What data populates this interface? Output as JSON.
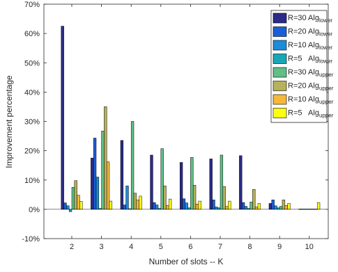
{
  "chart_data": {
    "type": "bar",
    "xlabel": "Number of slots -- K",
    "ylabel": "Improvement percentage",
    "ylim": [
      -10,
      70
    ],
    "yticks": [
      -10,
      0,
      10,
      20,
      30,
      40,
      50,
      60,
      70
    ],
    "ytick_labels": [
      "-10%",
      "0%",
      "10%",
      "20%",
      "30%",
      "40%",
      "50%",
      "60%",
      "70%"
    ],
    "categories": [
      "2",
      "3",
      "4",
      "5",
      "6",
      "7",
      "8",
      "9",
      "10"
    ],
    "grid": false,
    "legend_position": "top-right",
    "series": [
      {
        "name": "R=30 Alg",
        "sub": "lower",
        "color": "#2b2b8a",
        "values": [
          62.5,
          17.5,
          23.5,
          18.5,
          16.0,
          17.2,
          18.3,
          2.0,
          0.1
        ]
      },
      {
        "name": "R=20 Alg",
        "sub": "lower",
        "color": "#1a5fd6",
        "values": [
          2.2,
          24.3,
          1.5,
          2.3,
          3.6,
          3.2,
          2.3,
          3.2,
          0.1
        ]
      },
      {
        "name": "R=10 Alg",
        "sub": "lower",
        "color": "#1a8cd8",
        "values": [
          1.2,
          11.0,
          8.0,
          1.5,
          2.2,
          0.8,
          1.0,
          1.2,
          0.1
        ]
      },
      {
        "name": "R=5   Alg",
        "sub": "lower",
        "color": "#17a7b5",
        "values": [
          -0.8,
          0.3,
          0.2,
          0.3,
          0.5,
          0.5,
          0.3,
          0.5,
          0.1
        ]
      },
      {
        "name": "R=30 Alg",
        "sub": "upper",
        "color": "#5fbf86",
        "values": [
          7.5,
          26.7,
          30.0,
          20.7,
          17.7,
          18.5,
          2.5,
          1.0,
          0.1
        ]
      },
      {
        "name": "R=20 Alg",
        "sub": "upper",
        "color": "#b7b15a",
        "values": [
          9.8,
          35.0,
          5.5,
          8.0,
          8.2,
          7.8,
          6.8,
          3.2,
          0.1
        ]
      },
      {
        "name": "R=10 Alg",
        "sub": "upper",
        "color": "#f5b83a",
        "values": [
          4.8,
          16.2,
          3.2,
          1.3,
          1.8,
          1.0,
          0.8,
          1.3,
          0.1
        ]
      },
      {
        "name": "R=5   Alg",
        "sub": "upper",
        "color": "#ffff12",
        "values": [
          2.7,
          2.8,
          4.5,
          3.5,
          2.8,
          2.8,
          2.0,
          2.0,
          2.3
        ]
      }
    ]
  }
}
